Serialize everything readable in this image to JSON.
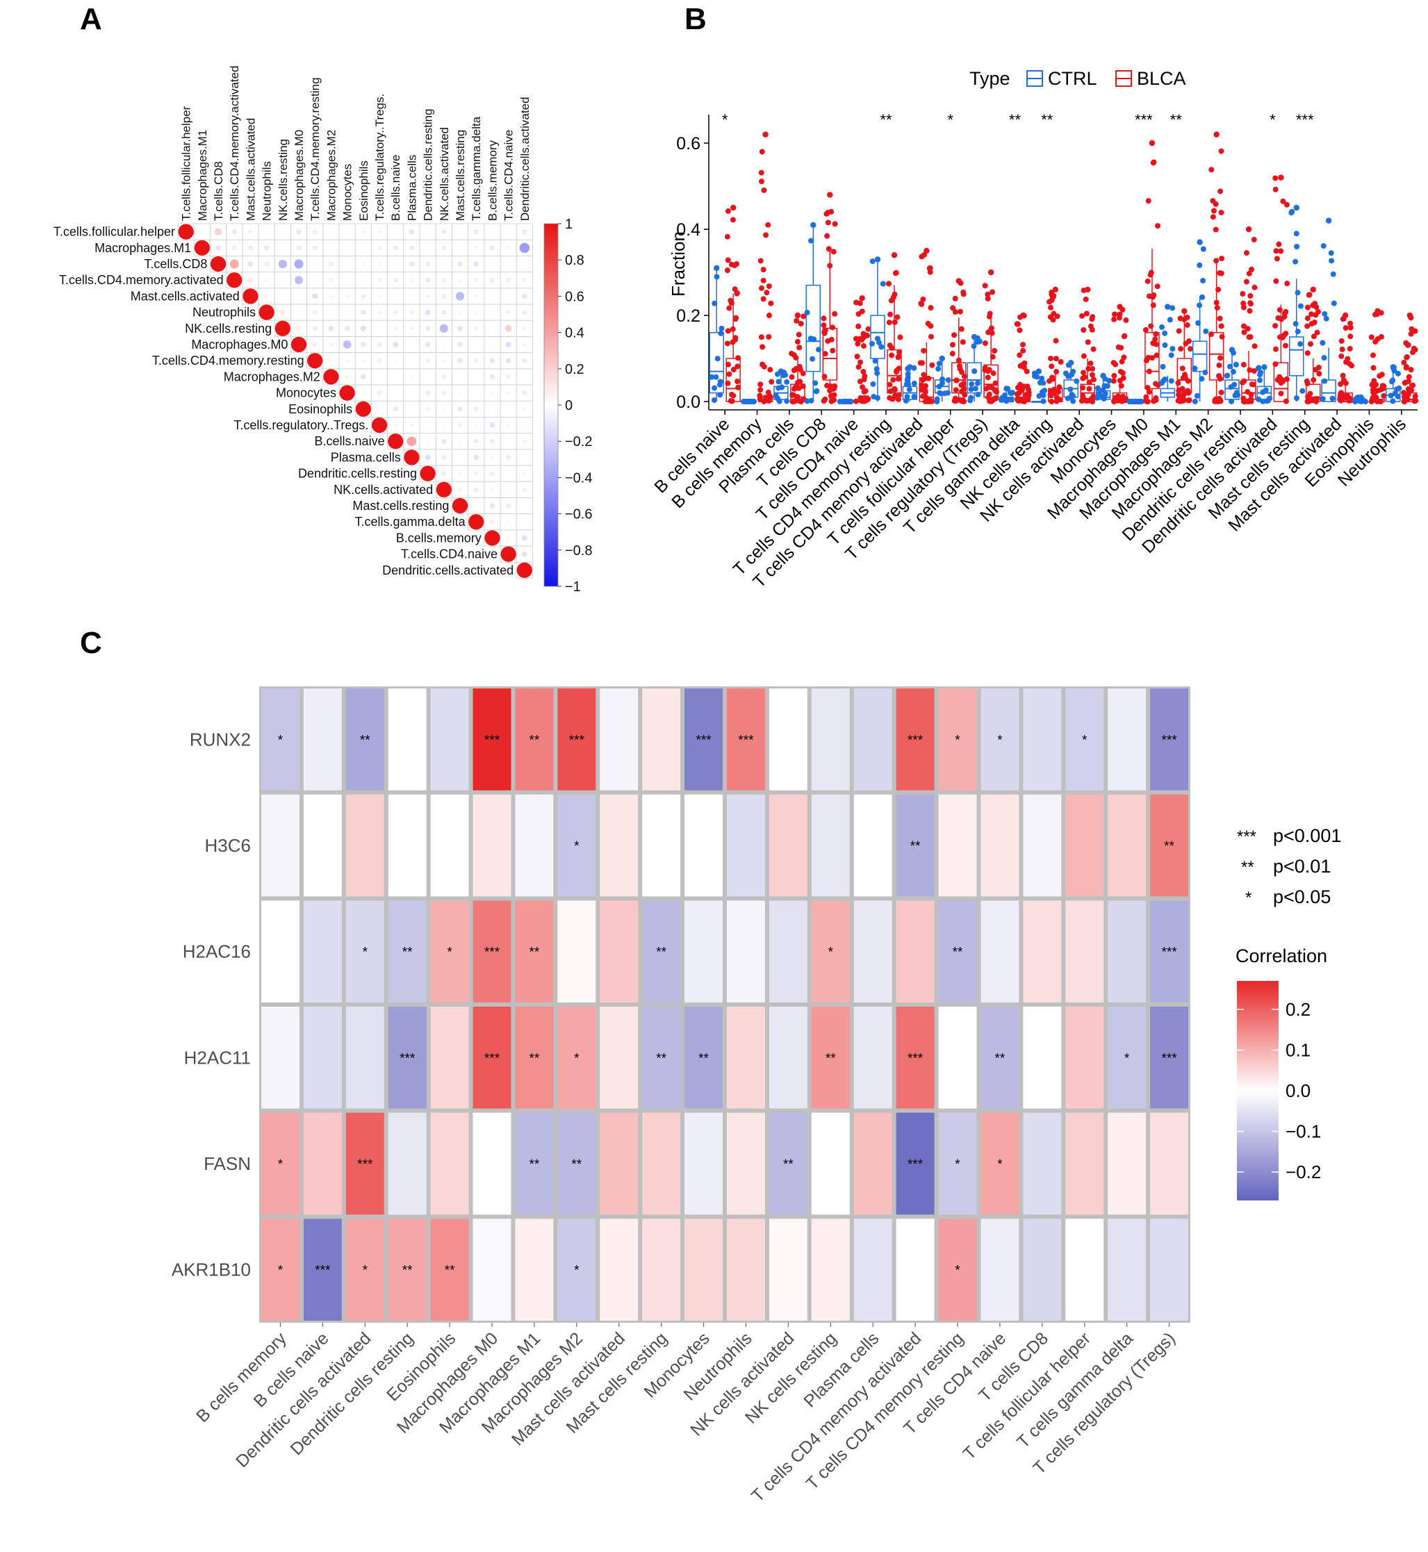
{
  "panels": {
    "a": "A",
    "b": "B",
    "c": "C"
  },
  "chart_data": [
    {
      "type": "heatmap",
      "panel": "A",
      "title": "",
      "variables": [
        "T.cells.follicular.helper",
        "Macrophages.M1",
        "T.cells.CD8",
        "T.cells.CD4.memory.activated",
        "Mast.cells.activated",
        "Neutrophils",
        "NK.cells.resting",
        "Macrophages.M0",
        "T.cells.CD4.memory.resting",
        "Macrophages.M2",
        "Monocytes",
        "Eosinophils",
        "T.cells.regulatory..Tregs.",
        "B.cells.naive",
        "Plasma.cells",
        "Dendritic.cells.resting",
        "NK.cells.activated",
        "Mast.cells.resting",
        "T.cells.gamma.delta",
        "B.cells.memory",
        "T.cells.CD4.naive",
        "Dendritic.cells.activated"
      ],
      "colorbar_ticks": [
        "1",
        "0.8",
        "0.6",
        "0.4",
        "0.2",
        "0",
        "−0.2",
        "−0.4",
        "−0.6",
        "−0.8",
        "−1"
      ],
      "range": [
        -1,
        1
      ],
      "note": "upper-triangle correlation matrix; diagonal = 1; off-diagonal values estimated",
      "highlights": [
        {
          "row": 2,
          "col": 3,
          "value": 0.35
        },
        {
          "row": 13,
          "col": 14,
          "value": 0.38
        },
        {
          "row": 2,
          "col": 6,
          "value": -0.3
        },
        {
          "row": 2,
          "col": 7,
          "value": -0.35
        },
        {
          "row": 3,
          "col": 7,
          "value": -0.28
        },
        {
          "row": 4,
          "col": 17,
          "value": -0.3
        },
        {
          "row": 6,
          "col": 16,
          "value": -0.3
        },
        {
          "row": 1,
          "col": 21,
          "value": -0.42
        },
        {
          "row": 7,
          "col": 10,
          "value": -0.28
        },
        {
          "row": 6,
          "col": 20,
          "value": 0.2
        },
        {
          "row": 0,
          "col": 2,
          "value": 0.2
        }
      ]
    },
    {
      "type": "box",
      "panel": "B",
      "legend_title": "Type",
      "legend": [
        {
          "name": "CTRL",
          "color": "#1e6fe0"
        },
        {
          "name": "BLCA",
          "color": "#e8141b"
        }
      ],
      "ylabel": "Fraction",
      "ylim": [
        0,
        0.65
      ],
      "yticks": [
        "0.0",
        "0.2",
        "0.4",
        "0.6"
      ],
      "categories": [
        "B cells naive",
        "B cells memory",
        "Plasma cells",
        "T cells CD8",
        "T cells CD4 naive",
        "T cells CD4 memory resting",
        "T cells CD4 memory activated",
        "T cells follicular helper",
        "T cells regulatory (Tregs)",
        "T cells gamma delta",
        "NK cells resting",
        "NK cells activated",
        "Monocytes",
        "Macrophages M0",
        "Macrophages M1",
        "Macrophages M2",
        "Dendritic cells resting",
        "Dendritic cells activated",
        "Mast cells resting",
        "Mast cells activated",
        "Eosinophils",
        "Neutrophils"
      ],
      "significance": [
        "*",
        "",
        "",
        "",
        "",
        "**",
        "",
        "*",
        "",
        "**",
        "**",
        "",
        "",
        "***",
        "**",
        "",
        "",
        "*",
        "***",
        "",
        "",
        ""
      ],
      "series": [
        {
          "name": "CTRL",
          "q1": [
            0.02,
            0.0,
            0.005,
            0.07,
            0.0,
            0.1,
            0.005,
            0.02,
            0.02,
            0.0,
            0.0,
            0.01,
            0.005,
            0.0,
            0.01,
            0.07,
            0.005,
            0.005,
            0.06,
            0.0,
            0.0,
            0.0
          ],
          "median": [
            0.07,
            0.0,
            0.02,
            0.14,
            0.0,
            0.16,
            0.02,
            0.035,
            0.05,
            0.0,
            0.0,
            0.03,
            0.01,
            0.0,
            0.02,
            0.11,
            0.03,
            0.02,
            0.12,
            0.02,
            0.0,
            0.015
          ],
          "q3": [
            0.16,
            0.0,
            0.035,
            0.27,
            0.0,
            0.2,
            0.035,
            0.05,
            0.09,
            0.01,
            0.0,
            0.05,
            0.025,
            0.0,
            0.03,
            0.14,
            0.05,
            0.035,
            0.15,
            0.05,
            0.0,
            0.03
          ],
          "max": [
            0.31,
            0.0,
            0.07,
            0.41,
            0.0,
            0.33,
            0.08,
            0.1,
            0.15,
            0.03,
            0.07,
            0.09,
            0.06,
            0.0,
            0.22,
            0.37,
            0.12,
            0.08,
            0.45,
            0.42,
            0.01,
            0.08
          ]
        },
        {
          "name": "BLCA",
          "q1": [
            0.0,
            0.0,
            0.0,
            0.05,
            0.0,
            0.02,
            0.0,
            0.02,
            0.01,
            0.0,
            0.0,
            0.0,
            0.0,
            0.03,
            0.02,
            0.05,
            0.005,
            0.0,
            0.0,
            0.0,
            0.0,
            0.0
          ],
          "median": [
            0.03,
            0.0,
            0.01,
            0.1,
            0.0,
            0.06,
            0.01,
            0.05,
            0.04,
            0.0,
            0.0,
            0.02,
            0.01,
            0.07,
            0.05,
            0.11,
            0.02,
            0.03,
            0.01,
            0.0,
            0.0,
            0.005
          ],
          "q3": [
            0.1,
            0.005,
            0.04,
            0.17,
            0.005,
            0.12,
            0.055,
            0.09,
            0.085,
            0.01,
            0.03,
            0.04,
            0.02,
            0.16,
            0.1,
            0.16,
            0.05,
            0.09,
            0.04,
            0.02,
            0.005,
            0.02
          ],
          "max": [
            0.45,
            0.62,
            0.2,
            0.48,
            0.24,
            0.34,
            0.35,
            0.28,
            0.3,
            0.2,
            0.26,
            0.26,
            0.22,
            0.6,
            0.21,
            0.62,
            0.4,
            0.52,
            0.26,
            0.2,
            0.21,
            0.2
          ]
        }
      ]
    },
    {
      "type": "heatmap",
      "panel": "C",
      "rows": [
        "RUNX2",
        "H3C6",
        "H2AC16",
        "H2AC11",
        "FASN",
        "AKR1B10"
      ],
      "columns": [
        "B cells memory",
        "B cells naive",
        "Dendritic cells activated",
        "Dendritic cells resting",
        "Eosinophils",
        "Macrophages M0",
        "Macrophages M1",
        "Macrophages M2",
        "Mast cells activated",
        "Mast cells resting",
        "Monocytes",
        "Neutrophils",
        "NK cells activated",
        "NK cells resting",
        "Plasma cells",
        "T cells CD4 memory activated",
        "T cells CD4 memory resting",
        "T cells CD4 naive",
        "T cells CD8",
        "T cells follicular helper",
        "T cells gamma delta",
        "T cells regulatory (Tregs)"
      ],
      "values": [
        [
          -0.1,
          -0.03,
          -0.15,
          0.0,
          -0.06,
          0.28,
          0.16,
          0.22,
          -0.02,
          0.03,
          -0.22,
          0.16,
          0.0,
          -0.04,
          -0.07,
          0.2,
          0.1,
          -0.07,
          -0.06,
          -0.08,
          -0.03,
          -0.2
        ],
        [
          -0.02,
          0.0,
          0.06,
          0.0,
          0.0,
          0.03,
          -0.02,
          -0.1,
          0.03,
          0.0,
          0.0,
          -0.06,
          0.06,
          -0.04,
          0.0,
          -0.14,
          0.02,
          0.03,
          -0.02,
          0.09,
          0.06,
          0.16
        ],
        [
          0.0,
          -0.06,
          -0.07,
          -0.1,
          0.1,
          0.17,
          0.13,
          0.01,
          0.07,
          -0.12,
          -0.03,
          -0.02,
          -0.05,
          0.1,
          -0.04,
          0.07,
          -0.12,
          -0.03,
          0.04,
          0.04,
          -0.07,
          -0.14
        ],
        [
          -0.02,
          -0.06,
          -0.05,
          -0.17,
          0.05,
          0.21,
          0.14,
          0.11,
          0.03,
          -0.12,
          -0.15,
          0.05,
          -0.04,
          0.13,
          -0.04,
          0.18,
          0.0,
          -0.12,
          0.0,
          0.07,
          -0.1,
          -0.2
        ],
        [
          0.11,
          0.07,
          0.2,
          -0.04,
          0.05,
          0.0,
          -0.12,
          -0.12,
          0.08,
          0.06,
          -0.03,
          0.03,
          -0.12,
          0.0,
          0.08,
          -0.25,
          -0.09,
          0.11,
          -0.06,
          0.06,
          0.02,
          0.04
        ],
        [
          0.11,
          -0.23,
          0.11,
          0.11,
          0.14,
          -0.01,
          0.02,
          -0.09,
          0.02,
          0.04,
          0.05,
          0.05,
          0.01,
          0.02,
          -0.05,
          0.0,
          0.12,
          -0.03,
          -0.07,
          0.0,
          -0.05,
          -0.06
        ]
      ],
      "significance": [
        [
          "*",
          "",
          "**",
          "",
          "",
          "***",
          "**",
          "***",
          "",
          "",
          "***",
          "***",
          "",
          "",
          "",
          "***",
          "*",
          "*",
          "",
          "*",
          "",
          "***"
        ],
        [
          "",
          "",
          "",
          "",
          "",
          "",
          "",
          "*",
          "",
          "",
          "",
          "",
          "",
          "",
          "",
          "**",
          "",
          "",
          "",
          "",
          "",
          "**"
        ],
        [
          "",
          "",
          "*",
          "**",
          "*",
          "***",
          "**",
          "",
          "",
          "**",
          "",
          "",
          "",
          "*",
          "",
          "",
          "**",
          "",
          "",
          "",
          "",
          "***"
        ],
        [
          "",
          "",
          "",
          "***",
          "",
          "***",
          "**",
          "*",
          "",
          "**",
          "**",
          "",
          "",
          "**",
          "",
          "***",
          "",
          "**",
          "",
          "",
          "*",
          "***"
        ],
        [
          "*",
          "",
          "***",
          "",
          "",
          "",
          "**",
          "**",
          "",
          "",
          "",
          "",
          "**",
          "",
          "",
          "***",
          "*",
          "*",
          "",
          "",
          "",
          ""
        ],
        [
          "*",
          "***",
          "*",
          "**",
          "**",
          "",
          "",
          "*",
          "",
          "",
          "",
          "",
          "",
          "",
          "",
          "",
          "*",
          "",
          "",
          "",
          "",
          ""
        ]
      ],
      "sig_legend": [
        {
          "mark": "***",
          "label": "p<0.001"
        },
        {
          "mark": "**",
          "label": "p<0.01"
        },
        {
          "mark": "*",
          "label": "p<0.05"
        }
      ],
      "colorbar_title": "Correlation",
      "colorbar_ticks": [
        "0.2",
        "0.1",
        "0.0",
        "−0.1",
        "−0.2"
      ],
      "range": [
        -0.27,
        0.27
      ]
    }
  ]
}
